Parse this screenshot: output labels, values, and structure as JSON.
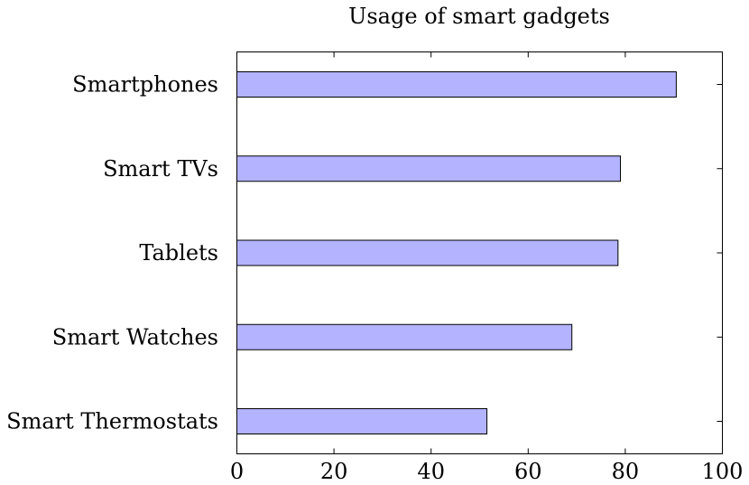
{
  "chart_data": {
    "type": "bar",
    "orientation": "horizontal",
    "title": "Usage of smart gadgets",
    "xlabel": "",
    "ylabel": "",
    "categories": [
      "Smartphones",
      "Smart TVs",
      "Tablets",
      "Smart Watches",
      "Smart Thermostats"
    ],
    "values": [
      90.5,
      79,
      78.5,
      69,
      51.5
    ],
    "xlim": [
      0,
      100
    ],
    "xticks": [
      0,
      20,
      40,
      60,
      80,
      100
    ],
    "grid": false,
    "colors": {
      "bar_fill": "#b3b3ff",
      "bar_stroke": "#000000",
      "axis": "#000000"
    }
  }
}
